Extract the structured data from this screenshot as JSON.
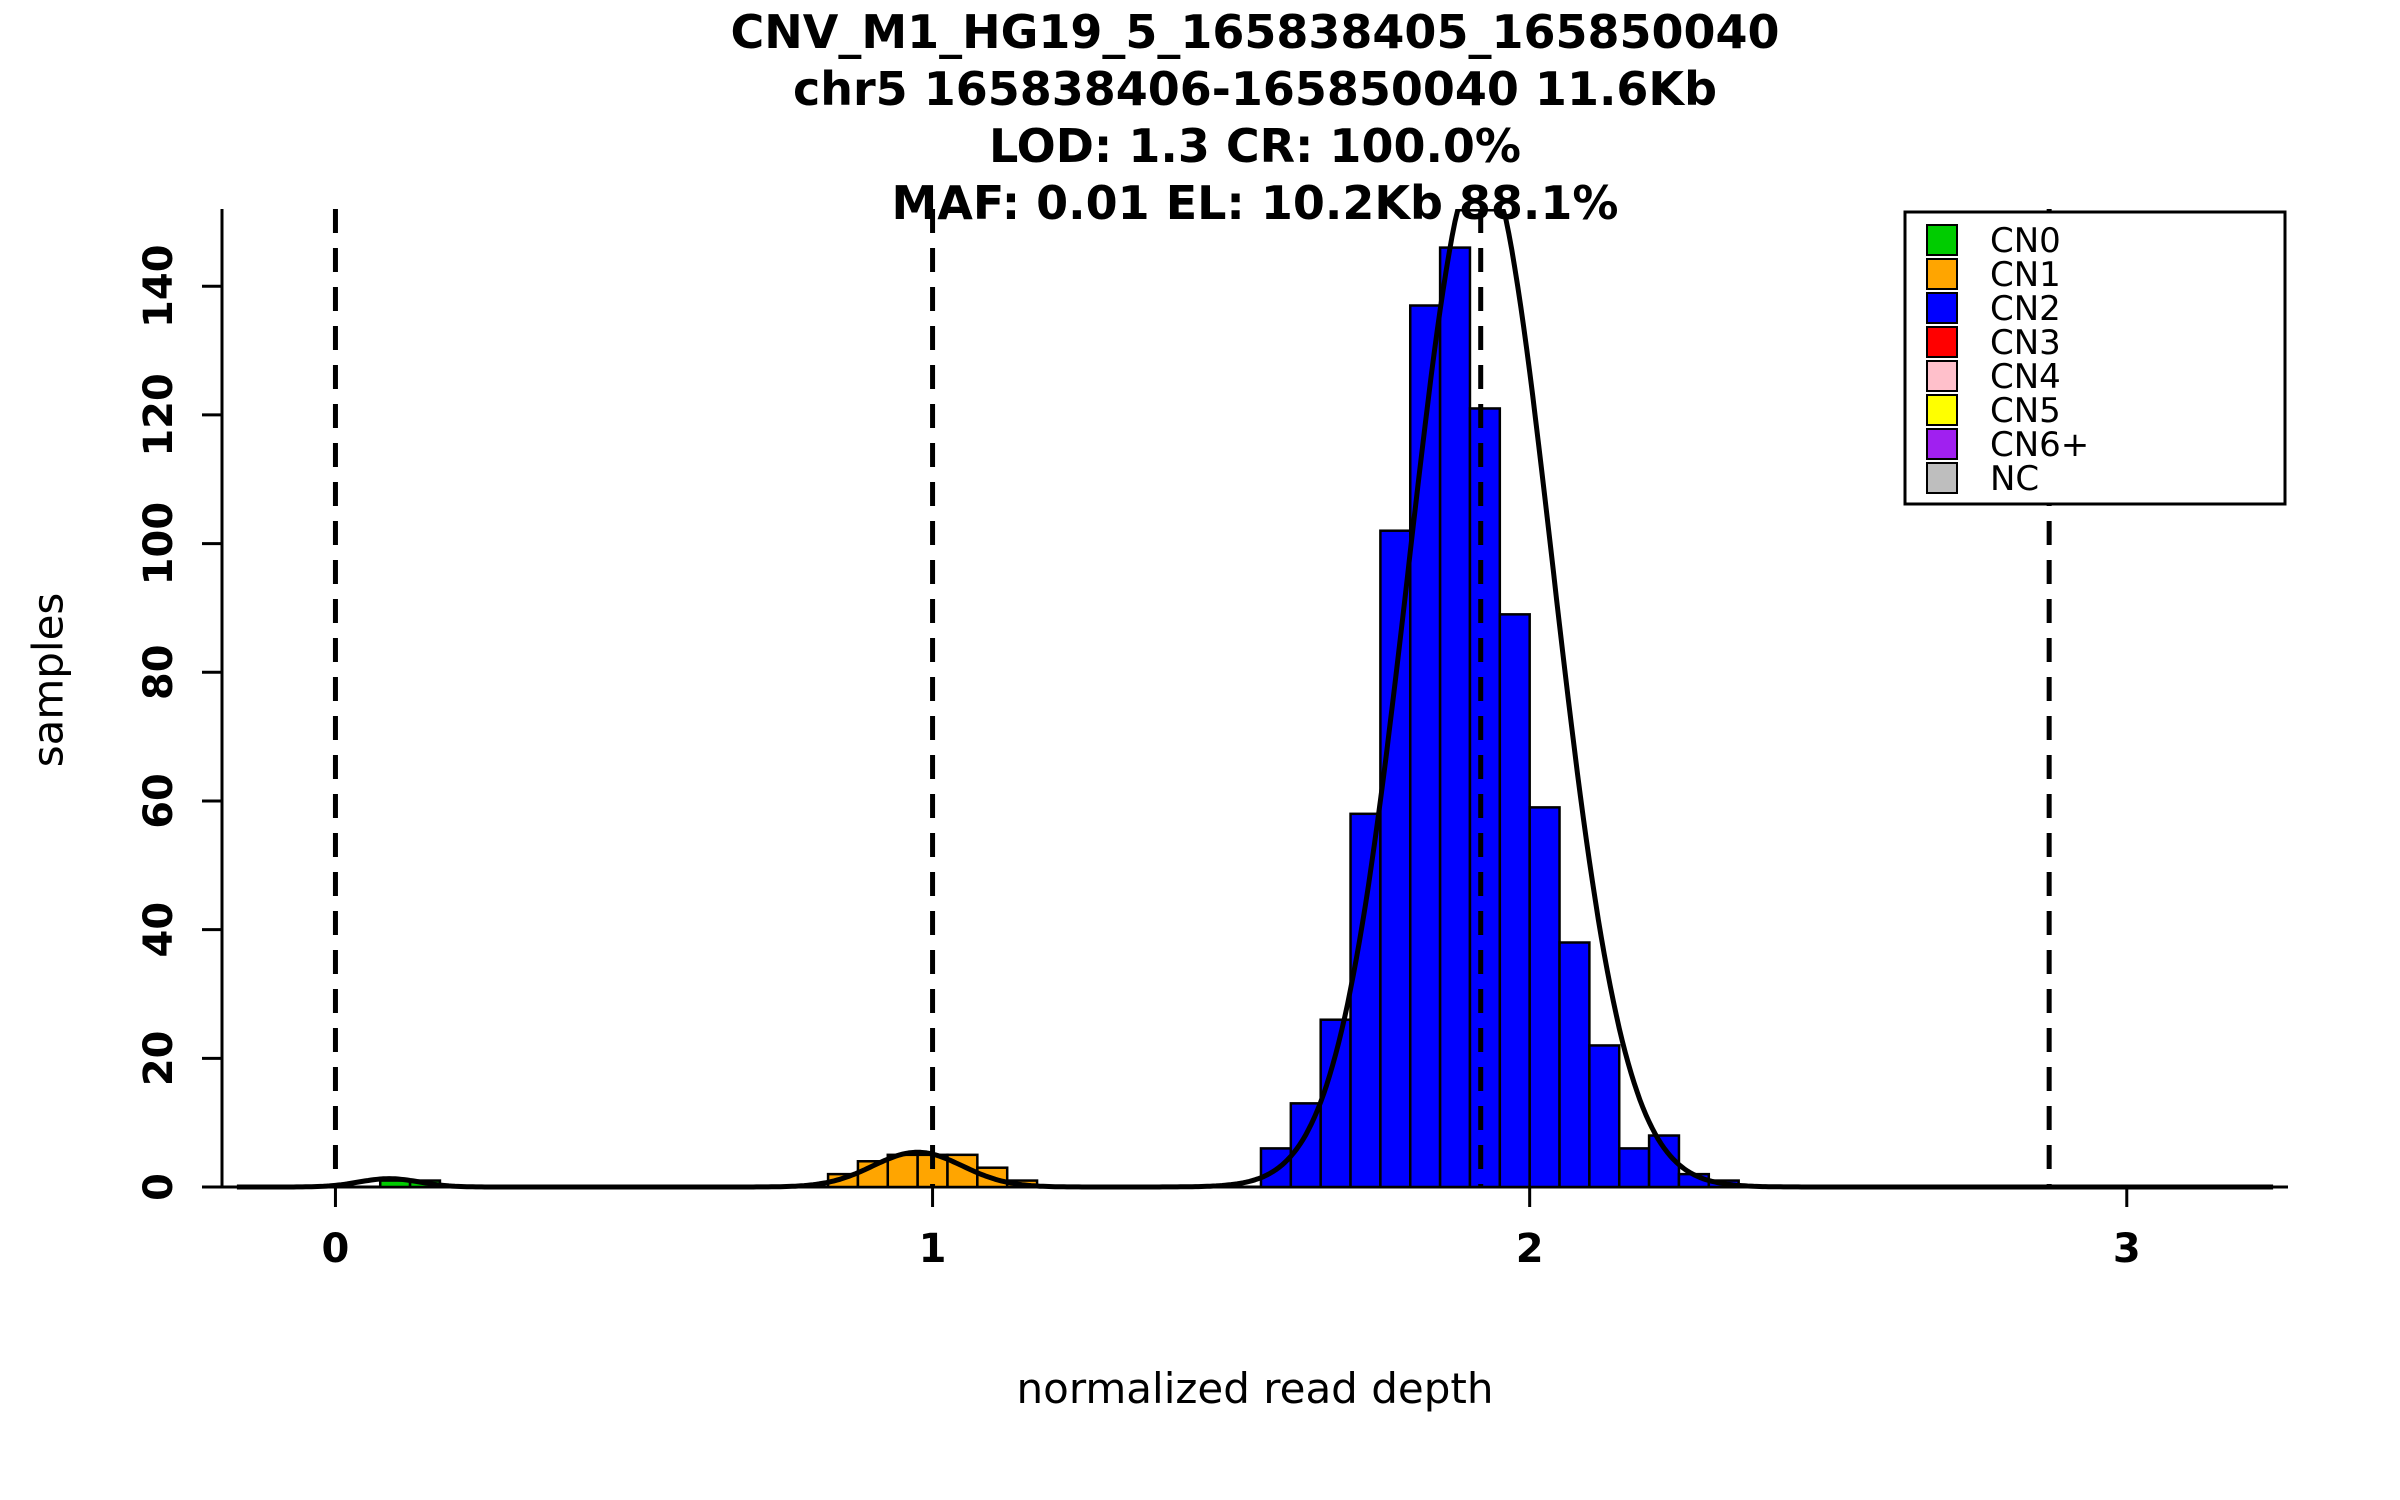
{
  "chart_data": {
    "type": "histogram",
    "title_lines": [
      "CNV_M1_HG19_5_165838405_165850040",
      "chr5 165838406-165850040 11.6Kb",
      "LOD: 1.3 CR: 100.0%",
      "MAF: 0.01 EL: 10.2Kb 88.1%"
    ],
    "xlabel": "normalized read depth",
    "ylabel": "samples",
    "xticks": [
      0,
      1,
      2,
      3
    ],
    "yticks": [
      0,
      20,
      40,
      60,
      80,
      100,
      120,
      140
    ],
    "xlim": [
      -0.19,
      3.27
    ],
    "ylim": [
      0,
      152
    ],
    "grid": false,
    "vlines_x": [
      0,
      1,
      1.918,
      2.87
    ],
    "bin_width": 0.05,
    "series": [
      {
        "name": "CN0",
        "color": "#00CC00",
        "bars": [
          [
            0.075,
            1
          ],
          [
            0.125,
            1
          ]
        ]
      },
      {
        "name": "CN1",
        "color": "#FFA500",
        "bars": [
          [
            0.825,
            2
          ],
          [
            0.875,
            4
          ],
          [
            0.925,
            5
          ],
          [
            0.975,
            5
          ],
          [
            1.025,
            5
          ],
          [
            1.075,
            3
          ],
          [
            1.125,
            1
          ]
        ]
      },
      {
        "name": "CN2",
        "color": "#0000FF",
        "bars": [
          [
            1.55,
            6
          ],
          [
            1.6,
            13
          ],
          [
            1.65,
            26
          ],
          [
            1.7,
            58
          ],
          [
            1.75,
            102
          ],
          [
            1.8,
            137
          ],
          [
            1.85,
            146
          ],
          [
            1.9,
            121
          ],
          [
            1.95,
            89
          ],
          [
            2.0,
            59
          ],
          [
            2.05,
            38
          ],
          [
            2.1,
            22
          ],
          [
            2.15,
            6
          ],
          [
            2.2,
            8
          ],
          [
            2.25,
            2
          ],
          [
            2.3,
            1
          ]
        ]
      }
    ],
    "density_curves": [
      {
        "mean": 0.09,
        "sd": 0.05,
        "amp": 1.3
      },
      {
        "mean": 0.975,
        "sd": 0.075,
        "amp": 5.4
      },
      {
        "mean": 1.918,
        "sd": 0.12,
        "amp": 160
      }
    ],
    "curve_color": "#000000",
    "legend": {
      "position": "topright",
      "items": [
        {
          "label": "CN0",
          "color": "#00CC00"
        },
        {
          "label": "CN1",
          "color": "#FFA500"
        },
        {
          "label": "CN2",
          "color": "#0000FF"
        },
        {
          "label": "CN3",
          "color": "#FF0000"
        },
        {
          "label": "CN4",
          "color": "#FFC0CB"
        },
        {
          "label": "CN5",
          "color": "#FFFF00"
        },
        {
          "label": "CN6+",
          "color": "#A020F0"
        },
        {
          "label": "NC",
          "color": "#BEBEBE"
        }
      ]
    }
  }
}
